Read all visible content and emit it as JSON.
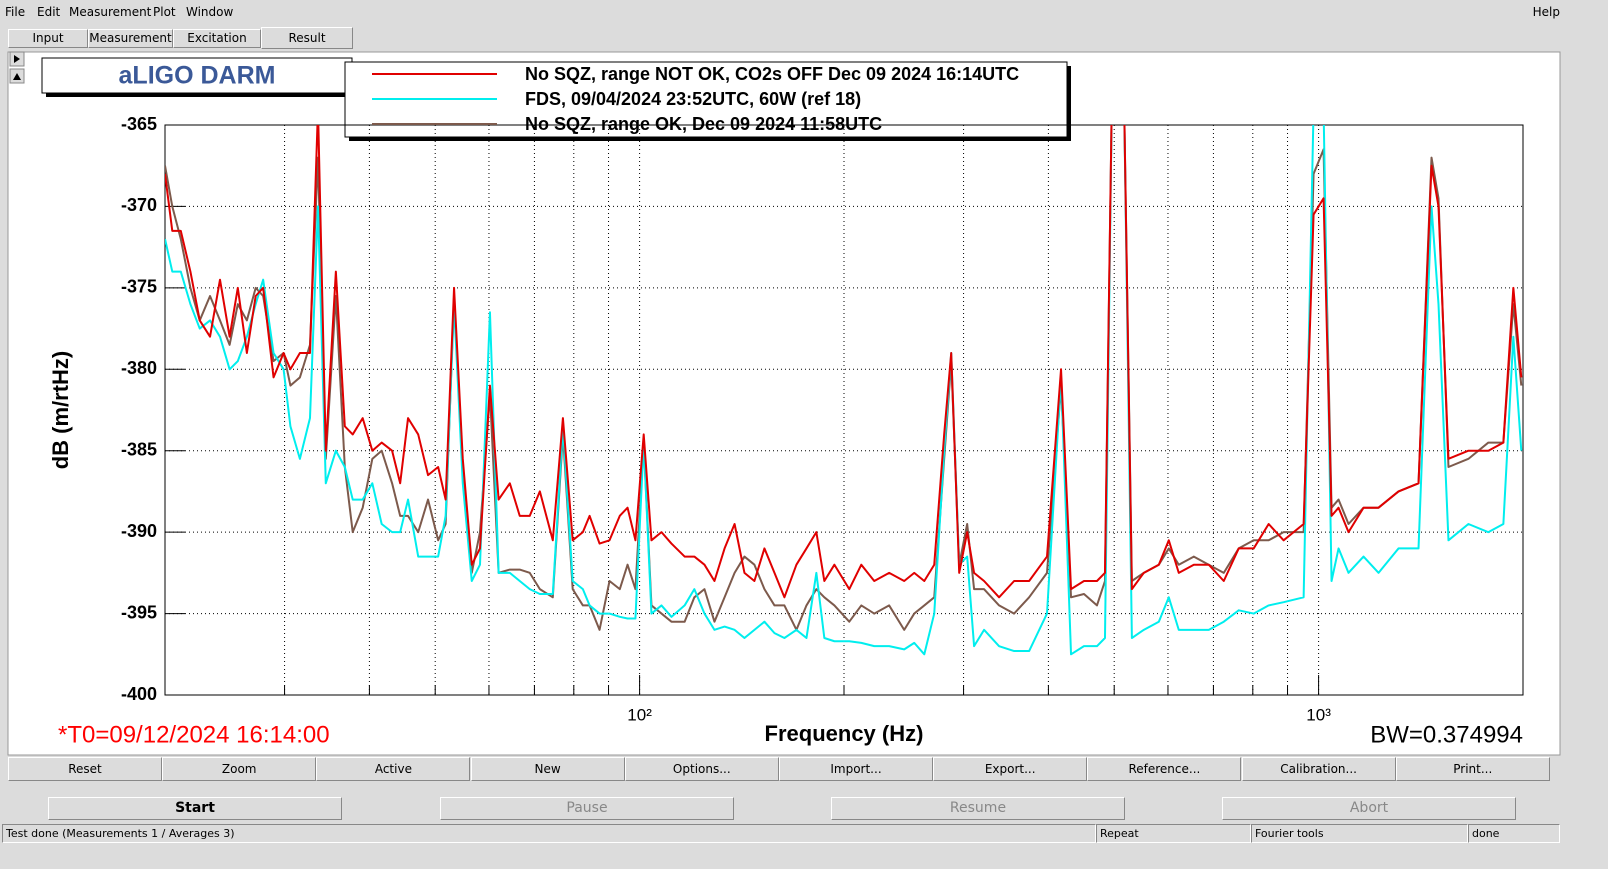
{
  "menu": [
    "File",
    "Edit",
    "Measurement",
    "Plot",
    "Window"
  ],
  "help": "Help",
  "tabs": [
    "Input",
    "Measurement",
    "Excitation",
    "Result"
  ],
  "chart_data": {
    "type": "line",
    "title": "aLIGO DARM",
    "xlabel": "Frequency (Hz)",
    "ylabel": "dB (m/rtHz)",
    "annotations": [
      "*T0=09/12/2024 16:14:00",
      "BW=0.374994"
    ],
    "xscale": "log",
    "grid": true,
    "legend": "top",
    "xlim": [
      20,
      2000
    ],
    "ylim": [
      -400,
      -365
    ],
    "xticks": [
      {
        "value": 100,
        "label": "10²"
      },
      {
        "value": 1000,
        "label": "10³"
      }
    ],
    "x_minor_ticks": [
      20,
      30,
      40,
      50,
      60,
      70,
      80,
      90,
      200,
      300,
      400,
      500,
      600,
      700,
      800,
      900,
      2000
    ],
    "yticks": [
      -365,
      -370,
      -375,
      -380,
      -385,
      -390,
      -395,
      -400
    ],
    "x": [
      20.0,
      20.5,
      21.1,
      21.8,
      22.5,
      23.3,
      24.1,
      24.9,
      25.6,
      26.4,
      27.2,
      27.9,
      28.9,
      29.9,
      30.6,
      31.6,
      32.7,
      33.6,
      34.5,
      35.7,
      36.8,
      37.8,
      39.1,
      40.4,
      41.7,
      43.2,
      44.4,
      45.6,
      47.2,
      48.8,
      50.5,
      51.8,
      53.3,
      54.9,
      56.6,
      58.2,
      60.2,
      62.0,
      64.4,
      66.6,
      68.9,
      71.3,
      74.5,
      77.1,
      79.7,
      82.5,
      84.4,
      87.3,
      90.3,
      93.5,
      96.0,
      98.6,
      101.4,
      104.1,
      107.7,
      111.4,
      116.5,
      120.4,
      124.6,
      128.9,
      133.4,
      138.0,
      142.7,
      147.6,
      152.7,
      158.0,
      163.4,
      170.2,
      176.1,
      182.1,
      187.1,
      193.6,
      203.6,
      212.1,
      221.6,
      233.1,
      245.3,
      253.8,
      262.6,
      271.6,
      280.9,
      287.7,
      295.6,
      303.7,
      310.9,
      321.6,
      338.4,
      356.1,
      374.7,
      398.1,
      417.5,
      431.9,
      451.3,
      471.6,
      484.6,
      496.2,
      516.8,
      530.9,
      552.8,
      581.7,
      601.7,
      622.4,
      655.0,
      689.0,
      725.0,
      762.7,
      802.4,
      844.2,
      888.1,
      950.5,
      983.1,
      1017.0,
      1044.9,
      1070.0,
      1106.8,
      1164.6,
      1225.3,
      1311.3,
      1403.3,
      1466.5,
      1501.7,
      1553.3,
      1662.0,
      1778.3,
      1871.2,
      1935.6,
      1988.5
    ],
    "series": [
      {
        "name": "No SQZ, range NOT OK, CO2s OFF Dec 09 2024 16:14UTC",
        "color": "#e00000",
        "values": [
          -368,
          -371.5,
          -371.5,
          -374,
          -377,
          -378,
          -374.5,
          -378,
          -375,
          -379,
          -375.5,
          -375,
          -380.5,
          -379,
          -380,
          -379,
          -379,
          -364,
          -385,
          -374,
          -383.5,
          -384,
          -383,
          -385,
          -384.5,
          -385,
          -387,
          -383,
          -384,
          -386.5,
          -386,
          -388,
          -375,
          -385.5,
          -392,
          -391,
          -381,
          -388,
          -387,
          -389,
          -389,
          -387.5,
          -390.5,
          -383,
          -390.5,
          -390,
          -389,
          -390.7,
          -390.5,
          -389,
          -388.5,
          -390.5,
          -384,
          -390.5,
          -390,
          -390.7,
          -391.5,
          -391.5,
          -392,
          -393,
          -391,
          -389.5,
          -392.5,
          -393,
          -391,
          -392.5,
          -394,
          -392,
          -391,
          -390,
          -393,
          -392,
          -393.5,
          -392,
          -393,
          -392.5,
          -393,
          -392.5,
          -393,
          -392,
          -384,
          -379,
          -392.5,
          -390,
          -392.5,
          -393,
          -394,
          -393,
          -393,
          -391.5,
          -380,
          -393.5,
          -393,
          -393,
          -392.5,
          -363,
          -363,
          -393.5,
          -392.5,
          -392,
          -390.5,
          -392.5,
          -392,
          -392,
          -393,
          -391,
          -391,
          -389.5,
          -390.5,
          -389.5,
          -370.5,
          -369.5,
          -389,
          -388.5,
          -390,
          -388.5,
          -388.5,
          -387.5,
          -387,
          -367.5,
          -370,
          -385.5,
          -385,
          -385,
          -384.5,
          -375,
          -380.5
        ]
      },
      {
        "name": "FDS, 09/04/2024 23:52UTC, 60W (ref 18)",
        "color": "#00eeee",
        "values": [
          -372,
          -374,
          -374,
          -376,
          -377.5,
          -377,
          -378,
          -380,
          -379.5,
          -378,
          -376,
          -374.5,
          -379,
          -380,
          -383.5,
          -385.5,
          -383,
          -370,
          -387,
          -385,
          -386,
          -388,
          -388,
          -387,
          -389.5,
          -390,
          -390,
          -388,
          -391.5,
          -391.5,
          -391.5,
          -389,
          -376,
          -387,
          -393,
          -392,
          -376.5,
          -392.5,
          -392.5,
          -393,
          -393.5,
          -393.8,
          -393.8,
          -383.5,
          -393,
          -393.5,
          -394.5,
          -395,
          -395,
          -395.2,
          -395.3,
          -395.3,
          -384.5,
          -395,
          -394.5,
          -395.2,
          -394.5,
          -393.5,
          -395,
          -396,
          -395.8,
          -396,
          -396.5,
          -396,
          -395.5,
          -396.2,
          -396.5,
          -396,
          -396.5,
          -392.5,
          -396.5,
          -396.7,
          -396.7,
          -396.8,
          -397,
          -397,
          -397.2,
          -396.8,
          -397.5,
          -395,
          -385,
          -379,
          -392,
          -391.5,
          -397,
          -396,
          -397,
          -397.3,
          -397.3,
          -395,
          -380.5,
          -397.5,
          -397,
          -397,
          -396.5,
          -363,
          -363,
          -396.5,
          -396,
          -395.5,
          -394,
          -396,
          -396,
          -396,
          -395.5,
          -394.8,
          -395,
          -394.5,
          -394.3,
          -394,
          -364,
          -364,
          -393,
          -391,
          -392.5,
          -391.5,
          -392.5,
          -391,
          -391,
          -370,
          -376,
          -390.5,
          -389.5,
          -390,
          -389.5,
          -378,
          -385
        ]
      },
      {
        "name": "No SQZ, range OK, Dec 09 2024 11:58UTC",
        "color": "#7d5a4c",
        "values": [
          -367.5,
          -370,
          -372,
          -375,
          -377,
          -375.5,
          -377,
          -378.5,
          -376,
          -377,
          -375,
          -375.5,
          -379.5,
          -379,
          -381,
          -380.5,
          -378.5,
          -367,
          -385.5,
          -375.5,
          -386,
          -390,
          -388.5,
          -385.5,
          -385,
          -387,
          -389,
          -389,
          -390,
          -388,
          -390.5,
          -389.5,
          -375.5,
          -386,
          -392.5,
          -390,
          -381.5,
          -392.5,
          -392.3,
          -392.3,
          -392.5,
          -393.5,
          -394,
          -384,
          -393.5,
          -394.5,
          -394.5,
          -396,
          -393,
          -393.5,
          -392,
          -393.5,
          -384.5,
          -394.5,
          -395,
          -395.5,
          -395.5,
          -394,
          -393.5,
          -395.5,
          -394,
          -392.5,
          -391.5,
          -392,
          -393.5,
          -394.5,
          -394.5,
          -396,
          -394.5,
          -393.5,
          -394,
          -394.5,
          -395.5,
          -394.5,
          -395,
          -394.5,
          -396,
          -395,
          -394.5,
          -394,
          -385.5,
          -379.5,
          -392,
          -389.5,
          -393.5,
          -393.5,
          -394.5,
          -395,
          -394,
          -392.5,
          -381,
          -394,
          -393.8,
          -394.5,
          -393,
          -363,
          -363,
          -393,
          -392.5,
          -392,
          -391,
          -392,
          -391.5,
          -392,
          -392.5,
          -391,
          -390.5,
          -390.5,
          -390,
          -390,
          -368,
          -366.5,
          -388.5,
          -388,
          -389.5,
          -388.5,
          -388.5,
          -387.5,
          -387,
          -367,
          -369.5,
          -386,
          -385.5,
          -384.5,
          -384.5,
          -376,
          -381
        ]
      }
    ]
  },
  "plot_buttons": [
    "Reset",
    "Zoom",
    "Active",
    "New",
    "Options...",
    "Import...",
    "Export...",
    "Reference...",
    "Calibration...",
    "Print..."
  ],
  "control_buttons": [
    "Start",
    "Pause",
    "Resume",
    "Abort"
  ],
  "status": [
    "Test done (Measurements 1 / Averages 3)",
    "Repeat",
    "Fourier tools",
    "done"
  ]
}
